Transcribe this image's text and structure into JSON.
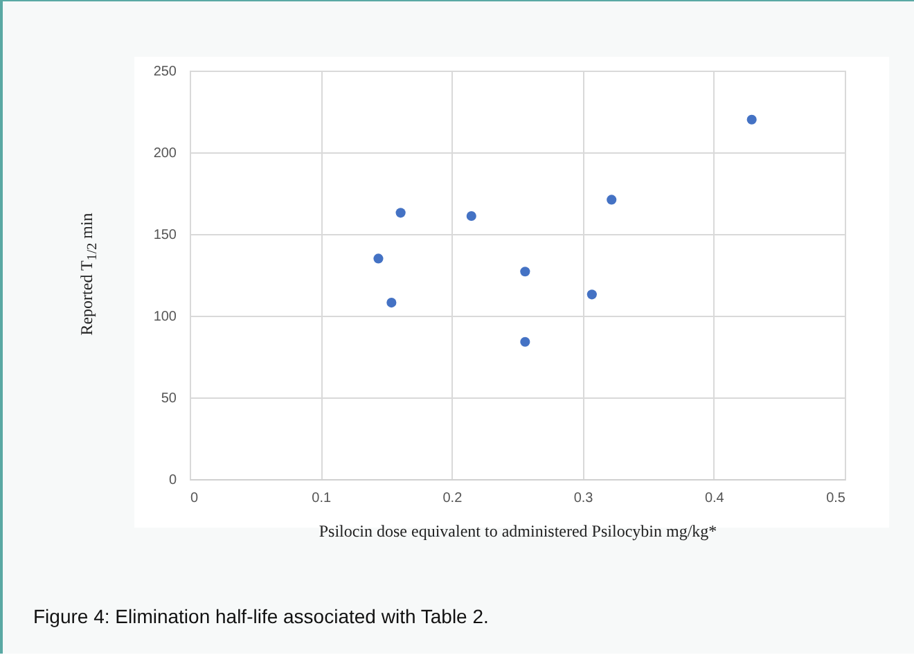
{
  "chart_data": {
    "type": "scatter",
    "xlabel": "Psilocin dose equivalent to administered Psilocybin mg/kg*",
    "ylabel": "Reported T$_{1/2}$ min",
    "annotations": [
      "Figure 4: Elimination half-life associated with Table 2."
    ],
    "x": [
      0.144,
      0.161,
      0.154,
      0.215,
      0.256,
      0.256,
      0.307,
      0.322,
      0.429
    ],
    "series": [
      {
        "color": "#4472c4",
        "values": [
          135,
          163,
          108,
          161,
          127,
          84,
          113,
          171,
          220
        ]
      }
    ],
    "xlim": [
      0,
      0.5
    ],
    "xticks": [
      0,
      0.1,
      0.2,
      0.3,
      0.4,
      0.5
    ],
    "ylim": [
      0,
      250
    ],
    "yticks": [
      0,
      50,
      100,
      150,
      200,
      250
    ],
    "grid": true,
    "marker": "circle"
  }
}
